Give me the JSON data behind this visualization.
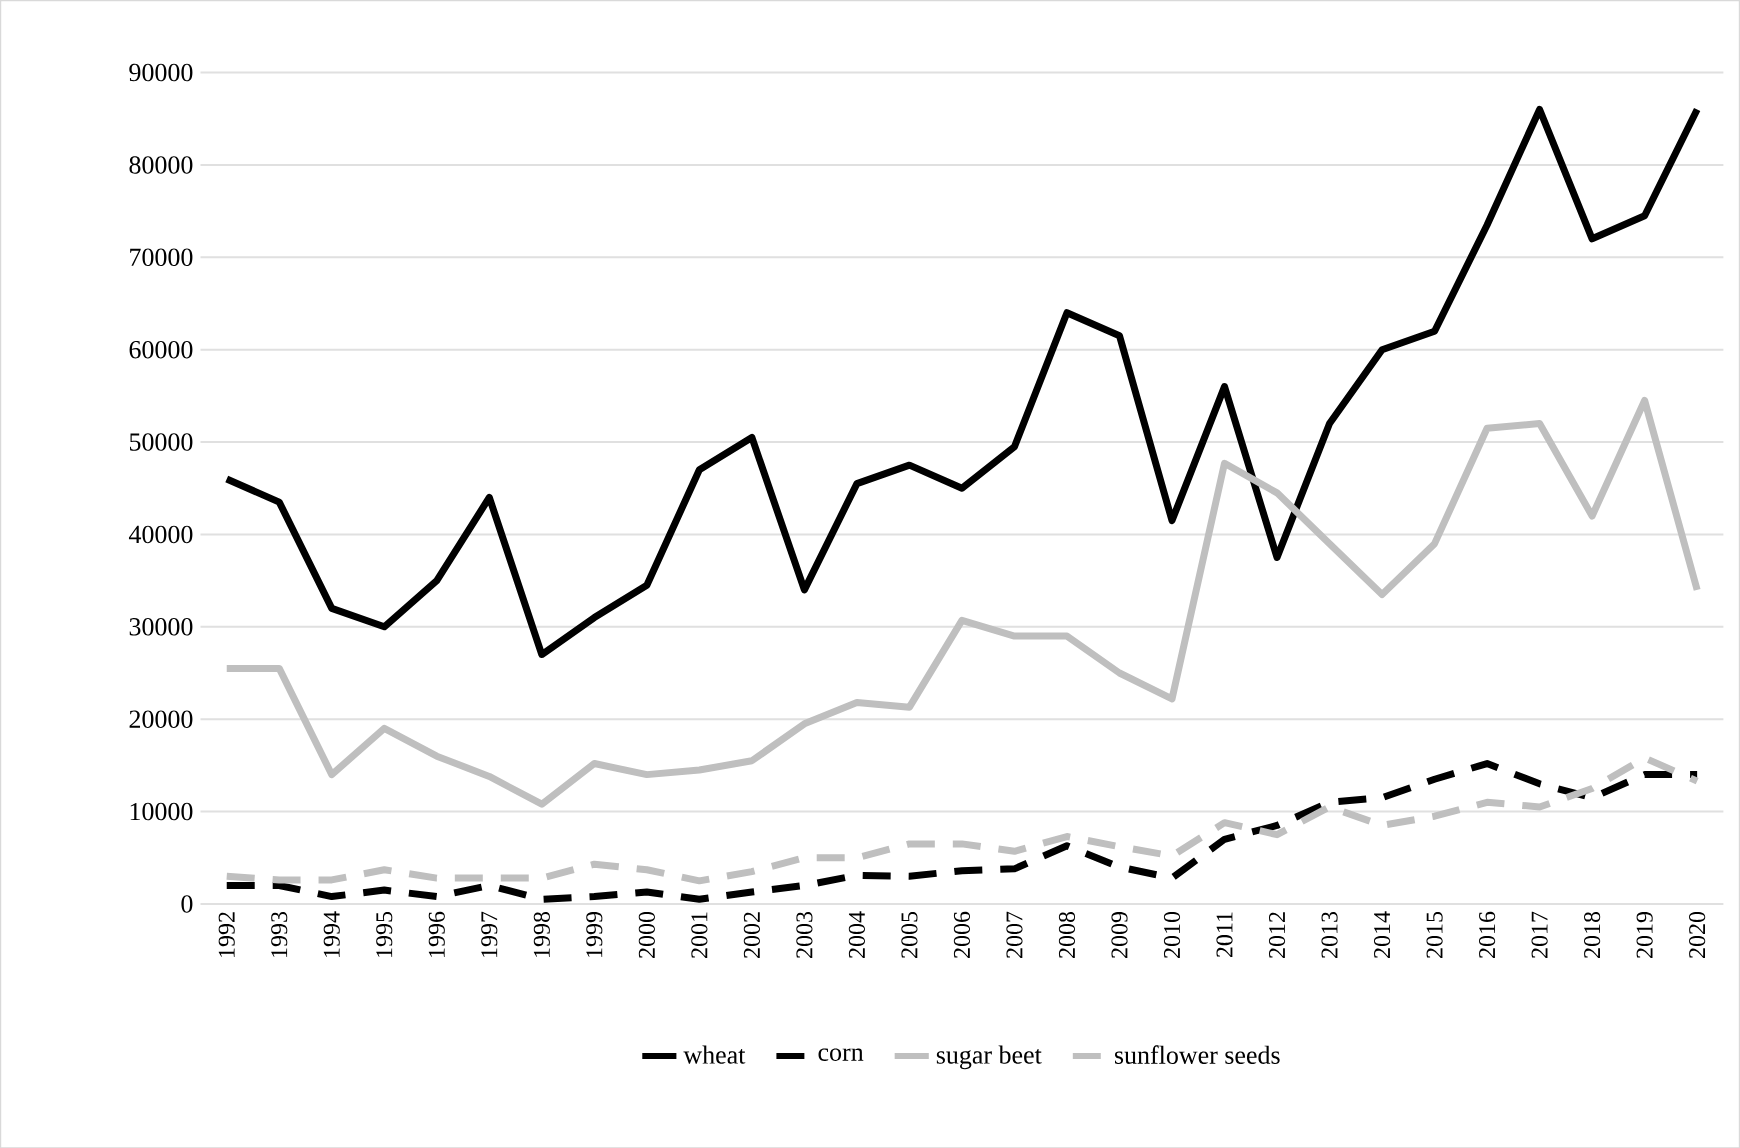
{
  "chart_data": {
    "type": "line",
    "categories": [
      "1992",
      "1993",
      "1994",
      "1995",
      "1996",
      "1997",
      "1998",
      "1999",
      "2000",
      "2001",
      "2002",
      "2003",
      "2004",
      "2005",
      "2006",
      "2007",
      "2008",
      "2009",
      "2010",
      "2011",
      "2012",
      "2013",
      "2014",
      "2015",
      "2016",
      "2017",
      "2018",
      "2019",
      "2020"
    ],
    "series": [
      {
        "name": "wheat",
        "color": "#000000",
        "line_style": "solid",
        "values": [
          46000,
          43500,
          32000,
          30000,
          35000,
          44000,
          27000,
          31000,
          34500,
          47000,
          50500,
          34000,
          45500,
          47500,
          45000,
          49500,
          64000,
          61500,
          41500,
          56000,
          37500,
          52000,
          60000,
          62000,
          73500,
          86000,
          72000,
          74500,
          86000
        ]
      },
      {
        "name": "corn",
        "color": "#000000",
        "line_style": "dashed",
        "values": [
          2000,
          2000,
          800,
          1500,
          800,
          2000,
          500,
          800,
          1300,
          500,
          1300,
          2000,
          3100,
          3000,
          3600,
          3800,
          6300,
          4000,
          2800,
          7000,
          8500,
          11000,
          11500,
          13500,
          15200,
          13000,
          11500,
          14000,
          14000
        ]
      },
      {
        "name": "sugar beet",
        "color": "#bfbfbf",
        "line_style": "solid",
        "values": [
          25500,
          25500,
          14000,
          19000,
          16000,
          13800,
          10800,
          15200,
          14000,
          14500,
          15500,
          19500,
          21800,
          21300,
          30700,
          29000,
          29000,
          25000,
          22200,
          47700,
          44500,
          39000,
          33500,
          39000,
          51500,
          52000,
          42000,
          54500,
          34000
        ]
      },
      {
        "name": "sunflower seeds",
        "color": "#bfbfbf",
        "line_style": "dashed",
        "values": [
          3000,
          2600,
          2600,
          3700,
          2800,
          2800,
          2800,
          4300,
          3700,
          2500,
          3500,
          5000,
          5000,
          6500,
          6500,
          5700,
          7300,
          6200,
          5200,
          8800,
          7500,
          10500,
          8500,
          9500,
          11000,
          10500,
          12500,
          15800,
          13300
        ]
      }
    ],
    "ylim": [
      0,
      90000
    ],
    "yticks": [
      0,
      10000,
      20000,
      30000,
      40000,
      50000,
      60000,
      70000,
      80000,
      90000
    ],
    "grid": "y",
    "legend": "bottom",
    "marker": "none"
  }
}
